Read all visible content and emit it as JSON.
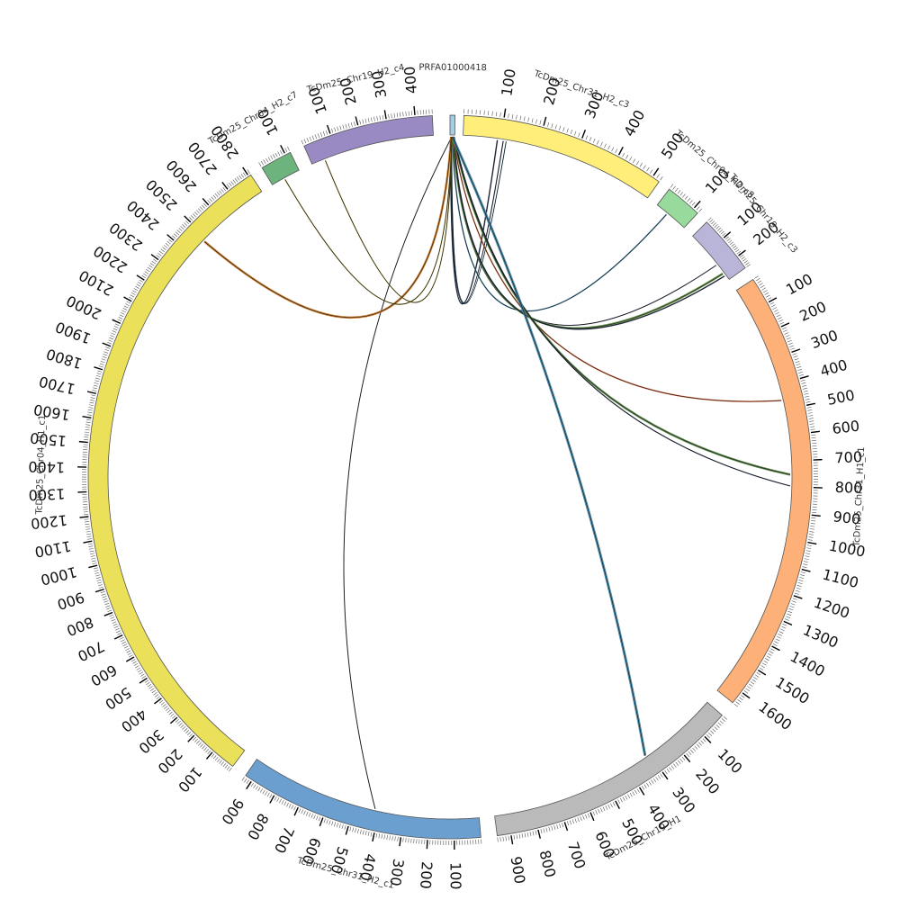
{
  "diagram": {
    "type": "circos",
    "tick_step": 100,
    "segments": [
      {
        "name": "PRFA01000418",
        "start_deg": 0.0,
        "end_deg": 0.8,
        "length": 20,
        "color": "#a6cee3",
        "show_ticks": false
      },
      {
        "name": "TcDm25_Chr31_H2_c3",
        "start_deg": 2.2,
        "end_deg": 35.3,
        "length": 520,
        "color": "#ffee7a",
        "show_ticks": true
      },
      {
        "name": "TcDm25_Chr04_H2_c8",
        "start_deg": 37.3,
        "end_deg": 43.2,
        "length": 120,
        "color": "#98d99c",
        "show_ticks": true
      },
      {
        "name": "TcDm25_Chr19_H2_c3",
        "start_deg": 45.2,
        "end_deg": 54.7,
        "length": 260,
        "color": "#b8b5d8",
        "show_ticks": true
      },
      {
        "name": "TcDm25_Chr31_H1_c1",
        "start_deg": 56.9,
        "end_deg": 128.6,
        "length": 1650,
        "color": "#fdb077",
        "show_ticks": true
      },
      {
        "name": "TcDm25_Chr19_H1",
        "start_deg": 131.2,
        "end_deg": 172.5,
        "length": 950,
        "color": "#bababa",
        "show_ticks": true
      },
      {
        "name": "TcDm25_Chr31_H2_c1",
        "start_deg": 175.1,
        "end_deg": 214.4,
        "length": 930,
        "color": "#6b9fcf",
        "show_ticks": true
      },
      {
        "name": "TcDm25_Chr04_H1_c1",
        "start_deg": 216.9,
        "end_deg": 326.6,
        "length": 2810,
        "color": "#ebe05a",
        "show_ticks": true
      },
      {
        "name": "TcDm25_Chr04_H2_c7",
        "start_deg": 328.7,
        "end_deg": 333.8,
        "length": 120,
        "color": "#6cb37e",
        "show_ticks": true
      },
      {
        "name": "TcDm25_Chr19_H2_c4",
        "start_deg": 336.2,
        "end_deg": 357.2,
        "length": 460,
        "color": "#9a8ac4",
        "show_ticks": true
      }
    ],
    "links": [
      {
        "from_deg": 0.1,
        "to_deg": 8.0,
        "width": 1.5,
        "color": "#2a3556"
      },
      {
        "from_deg": 0.2,
        "to_deg": 9.0,
        "width": 1.2,
        "color": "#2a3556"
      },
      {
        "from_deg": 0.3,
        "to_deg": 9.5,
        "width": 1.0,
        "color": "#1b5e78"
      },
      {
        "from_deg": 0.4,
        "to_deg": 39.5,
        "width": 1.5,
        "color": "#3d7fa1"
      },
      {
        "from_deg": 0.5,
        "to_deg": 51.5,
        "width": 1.0,
        "color": "#2a3556"
      },
      {
        "from_deg": 0.5,
        "to_deg": 53.3,
        "width": 2.5,
        "color": "#5a8a3c"
      },
      {
        "from_deg": 0.6,
        "to_deg": 53.8,
        "width": 1.5,
        "color": "#2a3556"
      },
      {
        "from_deg": 0.5,
        "to_deg": 77.0,
        "width": 1.5,
        "color": "#e06a3b"
      },
      {
        "from_deg": 0.6,
        "to_deg": 89.6,
        "width": 2.5,
        "color": "#4a7a3a"
      },
      {
        "from_deg": 0.7,
        "to_deg": 91.5,
        "width": 1.2,
        "color": "#2a3556"
      },
      {
        "from_deg": 0.4,
        "to_deg": 145.0,
        "width": 3.0,
        "color": "#3d7fa1"
      },
      {
        "from_deg": 0.3,
        "to_deg": 192.7,
        "width": 1.0,
        "color": "#333333"
      },
      {
        "from_deg": 0.2,
        "to_deg": 313.8,
        "width": 2.5,
        "color": "#c8731f"
      },
      {
        "from_deg": 0.3,
        "to_deg": 331.0,
        "width": 1.2,
        "color": "#8a7a10"
      },
      {
        "from_deg": 0.3,
        "to_deg": 338.5,
        "width": 1.2,
        "color": "#8a7a10"
      }
    ]
  }
}
